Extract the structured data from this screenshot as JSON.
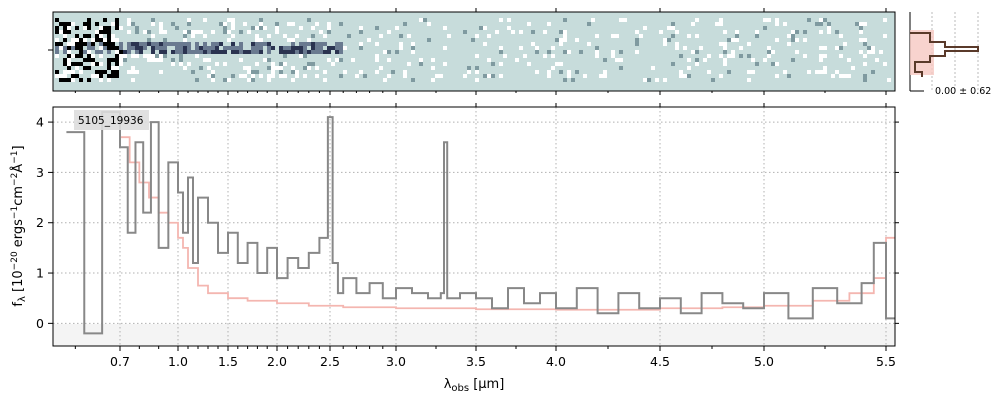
{
  "chart_data": {
    "type": "line",
    "object_label": "5105_19936",
    "xlabel": "λ_obs [μm]",
    "ylabel": "f_λ [10^-20 ergs^-1cm^-2Å^-1]",
    "xscale": "sqrt-like (nonlinear wavelength axis)",
    "xticks": [
      "0.7",
      "1.0",
      "1.5",
      "2.0",
      "2.5",
      "3.0",
      "3.5",
      "4.0",
      "4.5",
      "5.0",
      "5.5"
    ],
    "xtick_values": [
      0.7,
      1.0,
      1.5,
      2.0,
      2.5,
      3.0,
      3.5,
      4.0,
      4.5,
      5.0,
      5.5
    ],
    "yticks": [
      "0",
      "1",
      "2",
      "3",
      "4"
    ],
    "ylim": [
      -0.45,
      4.3
    ],
    "xlim": [
      0.55,
      5.52
    ],
    "grid": true,
    "series": [
      {
        "color": "#888888",
        "style": "steps",
        "x": [
          0.58,
          0.62,
          0.66,
          0.7,
          0.74,
          0.78,
          0.82,
          0.86,
          0.9,
          0.95,
          1.0,
          1.05,
          1.1,
          1.15,
          1.2,
          1.3,
          1.4,
          1.5,
          1.6,
          1.7,
          1.8,
          1.9,
          2.0,
          2.1,
          2.2,
          2.3,
          2.4,
          2.48,
          2.52,
          2.56,
          2.6,
          2.7,
          2.8,
          2.9,
          3.0,
          3.1,
          3.2,
          3.28,
          3.3,
          3.32,
          3.4,
          3.5,
          3.6,
          3.7,
          3.8,
          3.9,
          4.0,
          4.1,
          4.2,
          4.3,
          4.4,
          4.5,
          4.6,
          4.7,
          4.8,
          4.9,
          5.0,
          5.1,
          5.2,
          5.3,
          5.4,
          5.45,
          5.5
        ],
        "y": [
          3.8,
          -0.2,
          4.2,
          3.5,
          1.8,
          3.6,
          2.2,
          4.0,
          1.5,
          3.2,
          2.6,
          1.8,
          2.9,
          1.2,
          2.5,
          2.0,
          1.4,
          1.8,
          1.2,
          1.6,
          1.0,
          1.5,
          0.9,
          1.3,
          1.1,
          1.4,
          1.7,
          4.1,
          1.2,
          0.6,
          0.9,
          0.6,
          0.8,
          0.5,
          0.7,
          0.6,
          0.5,
          0.6,
          3.6,
          0.5,
          0.6,
          0.5,
          0.3,
          0.7,
          0.4,
          0.6,
          0.3,
          0.7,
          0.2,
          0.6,
          0.3,
          0.5,
          0.2,
          0.6,
          0.4,
          0.3,
          0.6,
          0.1,
          0.7,
          0.4,
          0.8,
          1.6,
          0.1
        ]
      },
      {
        "color": "#f4b6b0",
        "style": "steps",
        "x": [
          0.7,
          0.75,
          0.8,
          0.85,
          0.9,
          0.95,
          1.0,
          1.05,
          1.1,
          1.2,
          1.3,
          1.5,
          1.7,
          2.0,
          2.3,
          2.6,
          3.0,
          3.5,
          4.0,
          4.5,
          4.8,
          5.0,
          5.2,
          5.35,
          5.45,
          5.5
        ],
        "y": [
          3.7,
          3.2,
          2.8,
          2.5,
          2.2,
          2.0,
          1.7,
          1.5,
          1.1,
          0.75,
          0.6,
          0.5,
          0.45,
          0.4,
          0.35,
          0.32,
          0.3,
          0.28,
          0.27,
          0.3,
          0.32,
          0.35,
          0.45,
          0.6,
          0.9,
          1.7
        ]
      }
    ],
    "side_panel_label": "0.00 ± 0.62"
  }
}
